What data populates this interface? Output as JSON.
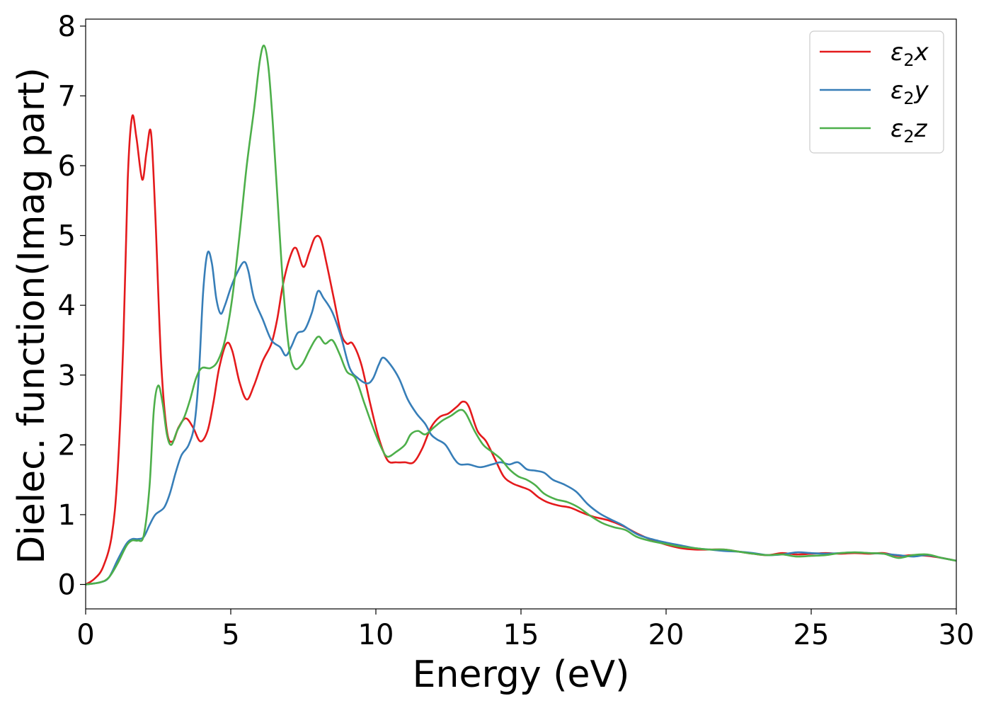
{
  "chart_data": {
    "type": "line",
    "xlabel": "Energy (eV)",
    "ylabel": "Dielec. function(Imag part)",
    "xlim": [
      0,
      30
    ],
    "ylim": [
      -0.35,
      8.1
    ],
    "xticks": [
      0,
      5,
      10,
      15,
      20,
      25,
      30
    ],
    "yticks": [
      0,
      1,
      2,
      3,
      4,
      5,
      6,
      7,
      8
    ],
    "grid": false,
    "legend_position": "top-right",
    "series": [
      {
        "name": "ε2x",
        "legend": {
          "base": "ε",
          "sub": "2",
          "var": "x"
        },
        "color": "#e41a1c",
        "points": [
          [
            0,
            0
          ],
          [
            0.3,
            0.08
          ],
          [
            0.6,
            0.25
          ],
          [
            0.9,
            0.7
          ],
          [
            1.1,
            1.6
          ],
          [
            1.3,
            3.5
          ],
          [
            1.45,
            5.8
          ],
          [
            1.6,
            6.7
          ],
          [
            1.75,
            6.4
          ],
          [
            1.95,
            5.8
          ],
          [
            2.1,
            6.2
          ],
          [
            2.25,
            6.48
          ],
          [
            2.4,
            5.3
          ],
          [
            2.6,
            3.2
          ],
          [
            2.8,
            2.2
          ],
          [
            3.0,
            2.05
          ],
          [
            3.2,
            2.25
          ],
          [
            3.45,
            2.38
          ],
          [
            3.7,
            2.25
          ],
          [
            3.95,
            2.05
          ],
          [
            4.2,
            2.2
          ],
          [
            4.4,
            2.6
          ],
          [
            4.6,
            3.1
          ],
          [
            4.85,
            3.45
          ],
          [
            5.05,
            3.35
          ],
          [
            5.3,
            2.9
          ],
          [
            5.55,
            2.65
          ],
          [
            5.8,
            2.85
          ],
          [
            6.1,
            3.2
          ],
          [
            6.4,
            3.45
          ],
          [
            6.6,
            3.8
          ],
          [
            6.8,
            4.3
          ],
          [
            7.05,
            4.7
          ],
          [
            7.25,
            4.82
          ],
          [
            7.5,
            4.55
          ],
          [
            7.7,
            4.75
          ],
          [
            7.9,
            4.97
          ],
          [
            8.1,
            4.95
          ],
          [
            8.3,
            4.6
          ],
          [
            8.55,
            4.1
          ],
          [
            8.8,
            3.6
          ],
          [
            9.0,
            3.45
          ],
          [
            9.2,
            3.45
          ],
          [
            9.5,
            3.15
          ],
          [
            9.8,
            2.6
          ],
          [
            10.1,
            2.1
          ],
          [
            10.4,
            1.78
          ],
          [
            10.7,
            1.75
          ],
          [
            11.0,
            1.75
          ],
          [
            11.3,
            1.75
          ],
          [
            11.6,
            1.95
          ],
          [
            11.9,
            2.25
          ],
          [
            12.2,
            2.4
          ],
          [
            12.5,
            2.45
          ],
          [
            12.8,
            2.55
          ],
          [
            13.0,
            2.62
          ],
          [
            13.2,
            2.55
          ],
          [
            13.5,
            2.2
          ],
          [
            13.8,
            2.05
          ],
          [
            14.1,
            1.8
          ],
          [
            14.4,
            1.55
          ],
          [
            14.7,
            1.45
          ],
          [
            15.0,
            1.4
          ],
          [
            15.3,
            1.35
          ],
          [
            15.6,
            1.25
          ],
          [
            15.9,
            1.18
          ],
          [
            16.3,
            1.13
          ],
          [
            16.7,
            1.1
          ],
          [
            17.1,
            1.03
          ],
          [
            17.5,
            0.97
          ],
          [
            18.0,
            0.92
          ],
          [
            18.5,
            0.84
          ],
          [
            19.0,
            0.73
          ],
          [
            19.5,
            0.64
          ],
          [
            20.0,
            0.57
          ],
          [
            20.5,
            0.52
          ],
          [
            21.0,
            0.5
          ],
          [
            21.5,
            0.5
          ],
          [
            22.0,
            0.5
          ],
          [
            22.5,
            0.47
          ],
          [
            23.0,
            0.44
          ],
          [
            23.5,
            0.42
          ],
          [
            24.0,
            0.45
          ],
          [
            24.5,
            0.43
          ],
          [
            25.0,
            0.44
          ],
          [
            25.5,
            0.45
          ],
          [
            26.0,
            0.44
          ],
          [
            26.5,
            0.45
          ],
          [
            27.0,
            0.44
          ],
          [
            27.5,
            0.45
          ],
          [
            28.0,
            0.41
          ],
          [
            28.5,
            0.42
          ],
          [
            29.0,
            0.41
          ],
          [
            29.5,
            0.38
          ],
          [
            30.0,
            0.34
          ]
        ]
      },
      {
        "name": "ε2y",
        "legend": {
          "base": "ε",
          "sub": "2",
          "var": "y"
        },
        "color": "#377eb8",
        "points": [
          [
            0,
            0
          ],
          [
            0.5,
            0.03
          ],
          [
            0.8,
            0.1
          ],
          [
            1.1,
            0.35
          ],
          [
            1.4,
            0.58
          ],
          [
            1.6,
            0.65
          ],
          [
            1.8,
            0.65
          ],
          [
            2.0,
            0.68
          ],
          [
            2.2,
            0.85
          ],
          [
            2.4,
            1.0
          ],
          [
            2.7,
            1.1
          ],
          [
            2.9,
            1.3
          ],
          [
            3.1,
            1.6
          ],
          [
            3.3,
            1.85
          ],
          [
            3.55,
            2.0
          ],
          [
            3.75,
            2.3
          ],
          [
            3.9,
            3.0
          ],
          [
            4.05,
            4.2
          ],
          [
            4.2,
            4.75
          ],
          [
            4.35,
            4.6
          ],
          [
            4.5,
            4.1
          ],
          [
            4.65,
            3.88
          ],
          [
            4.8,
            4.0
          ],
          [
            5.0,
            4.25
          ],
          [
            5.2,
            4.45
          ],
          [
            5.45,
            4.62
          ],
          [
            5.6,
            4.5
          ],
          [
            5.8,
            4.1
          ],
          [
            6.1,
            3.8
          ],
          [
            6.4,
            3.5
          ],
          [
            6.7,
            3.4
          ],
          [
            6.9,
            3.28
          ],
          [
            7.1,
            3.42
          ],
          [
            7.3,
            3.6
          ],
          [
            7.55,
            3.65
          ],
          [
            7.8,
            3.9
          ],
          [
            8.0,
            4.2
          ],
          [
            8.2,
            4.1
          ],
          [
            8.5,
            3.9
          ],
          [
            8.8,
            3.55
          ],
          [
            9.1,
            3.1
          ],
          [
            9.4,
            2.95
          ],
          [
            9.7,
            2.88
          ],
          [
            9.9,
            2.95
          ],
          [
            10.1,
            3.15
          ],
          [
            10.25,
            3.25
          ],
          [
            10.5,
            3.15
          ],
          [
            10.8,
            2.95
          ],
          [
            11.1,
            2.65
          ],
          [
            11.4,
            2.45
          ],
          [
            11.7,
            2.3
          ],
          [
            11.9,
            2.15
          ],
          [
            12.1,
            2.08
          ],
          [
            12.4,
            2.0
          ],
          [
            12.7,
            1.8
          ],
          [
            12.9,
            1.72
          ],
          [
            13.2,
            1.72
          ],
          [
            13.6,
            1.68
          ],
          [
            14.0,
            1.72
          ],
          [
            14.3,
            1.75
          ],
          [
            14.6,
            1.72
          ],
          [
            14.9,
            1.75
          ],
          [
            15.2,
            1.65
          ],
          [
            15.5,
            1.63
          ],
          [
            15.8,
            1.6
          ],
          [
            16.1,
            1.5
          ],
          [
            16.5,
            1.43
          ],
          [
            16.9,
            1.33
          ],
          [
            17.3,
            1.15
          ],
          [
            17.7,
            1.02
          ],
          [
            18.1,
            0.93
          ],
          [
            18.5,
            0.85
          ],
          [
            19.0,
            0.72
          ],
          [
            19.5,
            0.65
          ],
          [
            20.0,
            0.6
          ],
          [
            20.5,
            0.56
          ],
          [
            21.0,
            0.52
          ],
          [
            21.5,
            0.5
          ],
          [
            22.0,
            0.48
          ],
          [
            22.5,
            0.47
          ],
          [
            23.0,
            0.45
          ],
          [
            23.5,
            0.42
          ],
          [
            24.0,
            0.43
          ],
          [
            24.5,
            0.46
          ],
          [
            25.0,
            0.45
          ],
          [
            25.5,
            0.44
          ],
          [
            26.0,
            0.45
          ],
          [
            26.5,
            0.46
          ],
          [
            27.0,
            0.45
          ],
          [
            27.5,
            0.44
          ],
          [
            28.0,
            0.42
          ],
          [
            28.5,
            0.4
          ],
          [
            29.0,
            0.42
          ],
          [
            29.5,
            0.38
          ],
          [
            30.0,
            0.34
          ]
        ]
      },
      {
        "name": "ε2z",
        "legend": {
          "base": "ε",
          "sub": "2",
          "var": "z"
        },
        "color": "#4daf4a",
        "points": [
          [
            0,
            0
          ],
          [
            0.5,
            0.03
          ],
          [
            0.8,
            0.1
          ],
          [
            1.1,
            0.3
          ],
          [
            1.4,
            0.55
          ],
          [
            1.6,
            0.63
          ],
          [
            1.8,
            0.63
          ],
          [
            2.0,
            0.7
          ],
          [
            2.2,
            1.4
          ],
          [
            2.35,
            2.5
          ],
          [
            2.5,
            2.85
          ],
          [
            2.65,
            2.6
          ],
          [
            2.8,
            2.15
          ],
          [
            2.95,
            2.0
          ],
          [
            3.15,
            2.2
          ],
          [
            3.4,
            2.4
          ],
          [
            3.6,
            2.65
          ],
          [
            3.8,
            2.95
          ],
          [
            4.0,
            3.1
          ],
          [
            4.3,
            3.1
          ],
          [
            4.55,
            3.2
          ],
          [
            4.8,
            3.5
          ],
          [
            5.05,
            4.1
          ],
          [
            5.3,
            5.0
          ],
          [
            5.55,
            6.0
          ],
          [
            5.8,
            6.8
          ],
          [
            6.0,
            7.5
          ],
          [
            6.15,
            7.72
          ],
          [
            6.3,
            7.4
          ],
          [
            6.45,
            6.6
          ],
          [
            6.6,
            5.6
          ],
          [
            6.8,
            4.3
          ],
          [
            7.0,
            3.4
          ],
          [
            7.2,
            3.1
          ],
          [
            7.45,
            3.15
          ],
          [
            7.7,
            3.35
          ],
          [
            7.9,
            3.5
          ],
          [
            8.05,
            3.55
          ],
          [
            8.25,
            3.45
          ],
          [
            8.5,
            3.5
          ],
          [
            8.75,
            3.3
          ],
          [
            9.0,
            3.05
          ],
          [
            9.3,
            2.95
          ],
          [
            9.6,
            2.6
          ],
          [
            9.9,
            2.25
          ],
          [
            10.2,
            1.95
          ],
          [
            10.4,
            1.83
          ],
          [
            10.7,
            1.9
          ],
          [
            11.0,
            2.0
          ],
          [
            11.2,
            2.15
          ],
          [
            11.45,
            2.2
          ],
          [
            11.7,
            2.15
          ],
          [
            12.0,
            2.25
          ],
          [
            12.3,
            2.35
          ],
          [
            12.6,
            2.42
          ],
          [
            12.9,
            2.5
          ],
          [
            13.1,
            2.45
          ],
          [
            13.4,
            2.2
          ],
          [
            13.7,
            2.0
          ],
          [
            14.0,
            1.9
          ],
          [
            14.3,
            1.8
          ],
          [
            14.6,
            1.65
          ],
          [
            14.9,
            1.55
          ],
          [
            15.2,
            1.5
          ],
          [
            15.5,
            1.42
          ],
          [
            15.8,
            1.3
          ],
          [
            16.2,
            1.22
          ],
          [
            16.6,
            1.18
          ],
          [
            17.0,
            1.1
          ],
          [
            17.4,
            0.98
          ],
          [
            17.8,
            0.88
          ],
          [
            18.2,
            0.82
          ],
          [
            18.6,
            0.78
          ],
          [
            19.0,
            0.68
          ],
          [
            19.5,
            0.62
          ],
          [
            20.0,
            0.58
          ],
          [
            20.5,
            0.54
          ],
          [
            21.0,
            0.52
          ],
          [
            21.5,
            0.5
          ],
          [
            22.0,
            0.5
          ],
          [
            22.5,
            0.47
          ],
          [
            23.0,
            0.44
          ],
          [
            23.5,
            0.42
          ],
          [
            24.0,
            0.43
          ],
          [
            24.5,
            0.4
          ],
          [
            25.0,
            0.41
          ],
          [
            25.5,
            0.42
          ],
          [
            26.0,
            0.45
          ],
          [
            26.5,
            0.46
          ],
          [
            27.0,
            0.45
          ],
          [
            27.5,
            0.44
          ],
          [
            28.0,
            0.38
          ],
          [
            28.5,
            0.42
          ],
          [
            29.0,
            0.43
          ],
          [
            29.5,
            0.38
          ],
          [
            30.0,
            0.34
          ]
        ]
      }
    ]
  }
}
